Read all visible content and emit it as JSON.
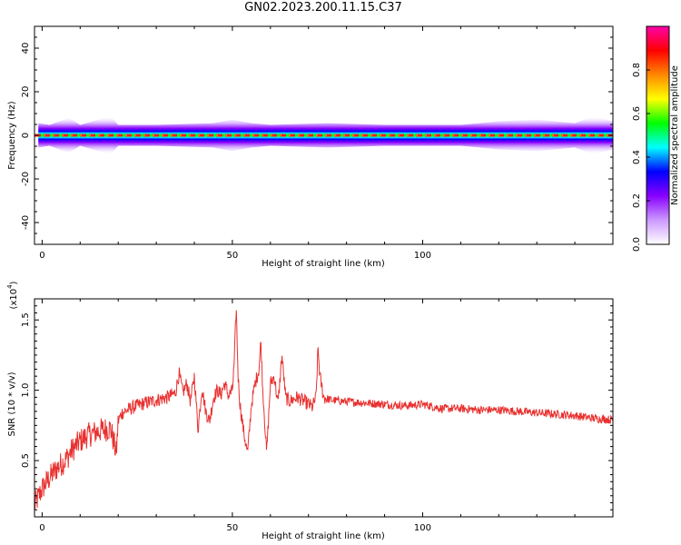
{
  "title": "GN02.2023.200.11.15.C37",
  "chart_data": [
    {
      "type": "heatmap",
      "name": "spectrogram",
      "xlabel": "Height of straight line (km)",
      "ylabel": "Frequency (Hz)",
      "xlim": [
        -2,
        150
      ],
      "ylim": [
        -50,
        50
      ],
      "xticks": [
        0,
        50,
        100
      ],
      "yticks": [
        -40,
        -20,
        0,
        20,
        40
      ],
      "band_center_hz": 0,
      "band_halfwidth_hz": [
        [
          -1,
          3.5
        ],
        [
          2,
          3
        ],
        [
          7,
          5
        ],
        [
          10,
          3
        ],
        [
          18,
          5.5
        ],
        [
          20,
          3
        ],
        [
          30,
          3
        ],
        [
          45,
          3.5
        ],
        [
          50,
          4.5
        ],
        [
          55,
          3.5
        ],
        [
          60,
          3
        ],
        [
          75,
          3.5
        ],
        [
          90,
          3
        ],
        [
          110,
          3
        ],
        [
          120,
          4
        ],
        [
          130,
          4.5
        ],
        [
          140,
          3.5
        ],
        [
          145,
          5.5
        ],
        [
          150,
          4
        ]
      ],
      "colorbar": {
        "label": "Normalized spectral amplitude",
        "range": [
          0,
          1
        ],
        "ticks": [
          0.0,
          0.2,
          0.4,
          0.6,
          0.8
        ],
        "tick_labels": [
          "0.0",
          "0.2",
          "0.4",
          "0.6",
          "0.8"
        ],
        "colormap": [
          "#ffffff",
          "#cc99ff",
          "#8800ff",
          "#0000ff",
          "#00ffff",
          "#00ff00",
          "#ffff00",
          "#ff8800",
          "#ff0000",
          "#ff00aa"
        ]
      }
    },
    {
      "type": "line",
      "name": "snr",
      "xlabel": "Height of straight line (km)",
      "ylabel": "SNR (10 * v/v)",
      "y_multiplier": "(x10",
      "y_multiplier_exp": "4",
      "y_multiplier_close": ")",
      "xlim": [
        -2,
        150
      ],
      "ylim": [
        0.1,
        1.65
      ],
      "xticks": [
        0,
        50,
        100
      ],
      "yticks": [
        0.5,
        1.0,
        1.5
      ],
      "ytick_labels": [
        "0.5",
        "1.0",
        "1.5"
      ],
      "color": "#e8312f",
      "x": [
        -2,
        0,
        2,
        4,
        6,
        8,
        10,
        12,
        14,
        16,
        18,
        19.5,
        20,
        21,
        24,
        27,
        30,
        33,
        35,
        36,
        37,
        38,
        39,
        40,
        41,
        42,
        43,
        44,
        45,
        46,
        47,
        48,
        49,
        50,
        50.5,
        51,
        51.5,
        52,
        53,
        54,
        55,
        56,
        57,
        57.5,
        58,
        59,
        60,
        61,
        62,
        63,
        64,
        65,
        67,
        69,
        71,
        72,
        72.5,
        73,
        74,
        76,
        80,
        85,
        90,
        95,
        100,
        105,
        110,
        115,
        120,
        125,
        130,
        135,
        140,
        145,
        150
      ],
      "y": [
        0.18,
        0.3,
        0.38,
        0.45,
        0.5,
        0.58,
        0.64,
        0.68,
        0.7,
        0.72,
        0.73,
        0.55,
        0.78,
        0.84,
        0.88,
        0.91,
        0.93,
        0.95,
        0.98,
        1.12,
        0.98,
        1.05,
        0.92,
        1.1,
        0.72,
        1.02,
        0.85,
        0.78,
        0.94,
        1.0,
        0.97,
        1.05,
        0.96,
        1.0,
        1.2,
        1.6,
        1.1,
        0.9,
        0.7,
        0.55,
        0.9,
        1.05,
        1.15,
        1.35,
        1.0,
        0.55,
        1.05,
        1.1,
        0.9,
        1.25,
        0.95,
        0.92,
        0.95,
        0.92,
        0.88,
        0.95,
        1.3,
        1.1,
        0.95,
        0.93,
        0.92,
        0.91,
        0.9,
        0.89,
        0.9,
        0.87,
        0.87,
        0.86,
        0.86,
        0.85,
        0.84,
        0.83,
        0.82,
        0.8,
        0.79
      ]
    }
  ]
}
